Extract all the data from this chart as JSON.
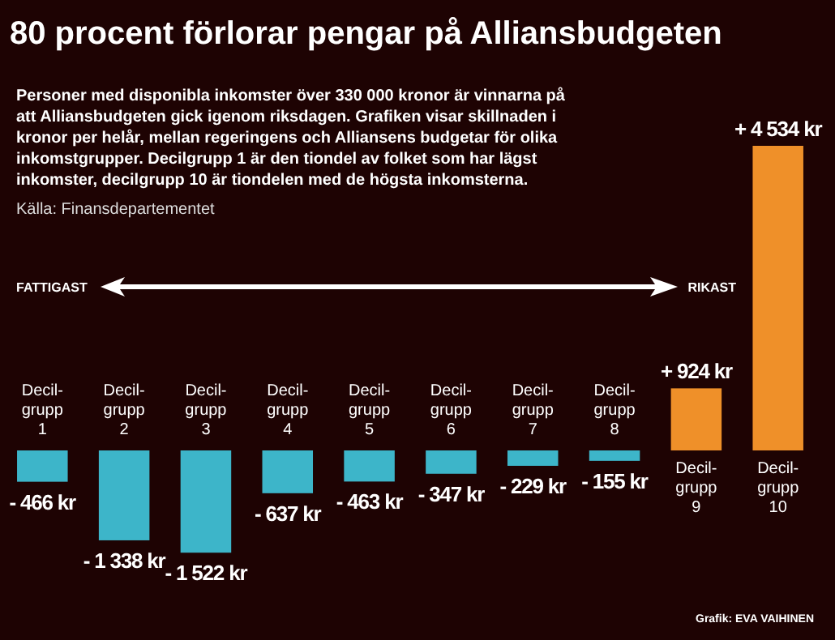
{
  "chart_data": {
    "type": "bar",
    "title": "80 procent förlorar pengar på Alliansbudgeten",
    "subtitle": "Personer med disponibla inkomster över 330 000 kronor är vinnarna på\natt Alliansbudgeten gick igenom riksdagen. Grafiken visar skillnaden i\nkronor per helår, mellan regeringens och Alliansens budgetar för olika\ninkomstgrupper. Decilgrupp 1 är den tiondel av folket som har lägst\ninkomster, decilgrupp 10 är tiondelen med de högsta inkomsterna.",
    "categories": [
      "Decil-\ngrupp\n1",
      "Decil-\ngrupp\n2",
      "Decil-\ngrupp\n3",
      "Decil-\ngrupp\n4",
      "Decil-\ngrupp\n5",
      "Decil-\ngrupp\n6",
      "Decil-\ngrupp\n7",
      "Decil-\ngrupp\n8",
      "Decil-\ngrupp\n9",
      "Decil-\ngrupp\n10"
    ],
    "values": [
      -466,
      -1338,
      -1522,
      -637,
      -463,
      -347,
      -229,
      -155,
      924,
      4534
    ],
    "colors": [
      "#3db5c9",
      "#3db5c9",
      "#3db5c9",
      "#3db5c9",
      "#3db5c9",
      "#3db5c9",
      "#3db5c9",
      "#3db5c9",
      "#ef9029",
      "#ef9029"
    ],
    "value_labels": [
      "- 466 kr",
      "- 1 338 kr",
      "- 1 522 kr",
      "- 637 kr",
      "- 463 kr",
      "- 347 kr",
      "- 229 kr",
      "- 155 kr",
      "+ 924 kr",
      "+ 4 534 kr"
    ],
    "annotations": [
      "FATTIGAST",
      "RIKAST",
      "Källa: Finansdepartementet",
      "Grafik: EVA VAIHINEN"
    ]
  }
}
